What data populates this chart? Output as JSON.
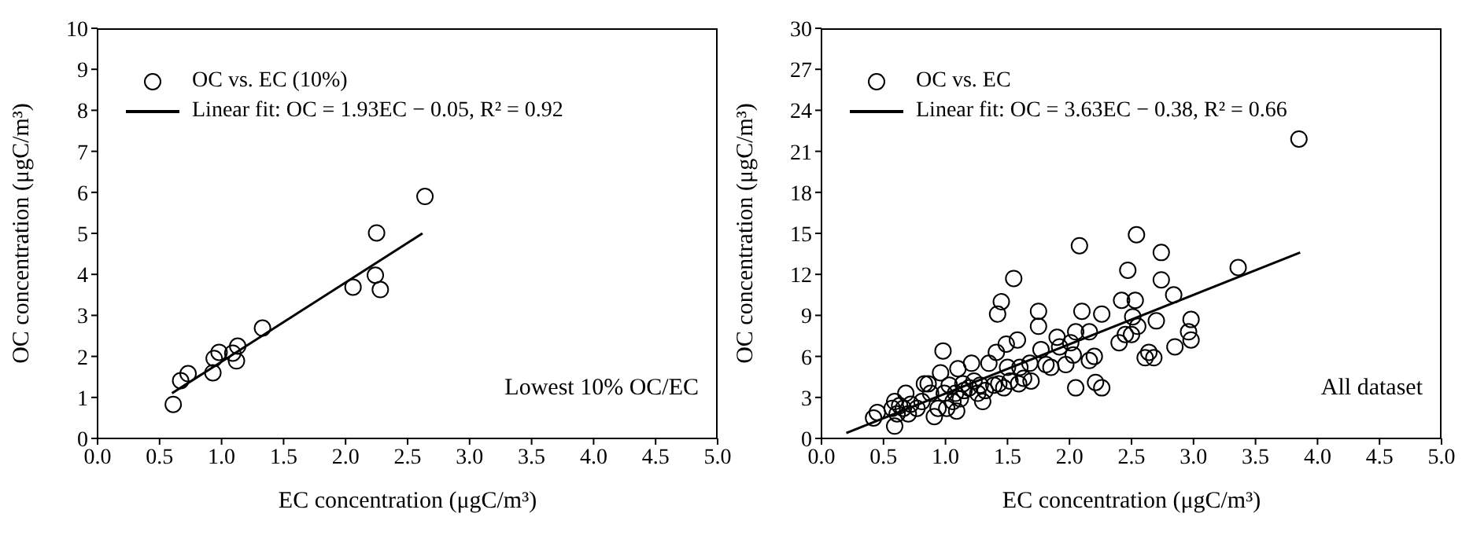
{
  "chart_data": [
    {
      "type": "scatter",
      "xlabel": "EC concentration (μgC/m³)",
      "ylabel": "OC concentration (μgC/m³)",
      "annotations": [
        "Lowest 10% OC/EC"
      ],
      "xlim": [
        0,
        5
      ],
      "xticks": [
        {
          "value": 0,
          "label": "0.0"
        },
        0.5,
        {
          "value": 1,
          "label": "1.0"
        },
        1.5,
        {
          "value": 2,
          "label": "2.0"
        },
        2.5,
        {
          "value": 3,
          "label": "3.0"
        },
        3.5,
        {
          "value": 4,
          "label": "4.0"
        },
        4.5,
        {
          "value": 5,
          "label": "5.0"
        }
      ],
      "ylim": [
        0,
        10
      ],
      "yticks": [
        0,
        1,
        2,
        3,
        4,
        5,
        6,
        7,
        8,
        9,
        10
      ],
      "grid": false,
      "legend": "top left",
      "series": [
        {
          "name": "OC vs. EC (10%)",
          "marker": "circle",
          "color": "#000000",
          "x": [
            0.61,
            0.67,
            0.73,
            0.93,
            0.94,
            0.98,
            1.09,
            1.12,
            1.13,
            1.33,
            2.06,
            2.24,
            2.28,
            2.25,
            2.64
          ],
          "values": [
            0.83,
            1.41,
            1.58,
            1.6,
            1.95,
            2.1,
            2.08,
            1.89,
            2.25,
            2.69,
            3.69,
            3.98,
            3.63,
            5.01,
            5.9
          ]
        },
        {
          "name": "Linear fit: OC = 1.93EC − 0.05, R² = 0.92",
          "type": "line",
          "color": "#000000",
          "line_style": "solid",
          "x": [
            0.6,
            2.62
          ],
          "values": [
            1.1,
            5.0
          ]
        }
      ]
    },
    {
      "type": "scatter",
      "xlabel": "EC concentration (μgC/m³)",
      "ylabel": "OC concentration (μgC/m³)",
      "annotations": [
        "All dataset"
      ],
      "xlim": [
        0,
        5
      ],
      "xticks": [
        {
          "value": 0,
          "label": "0.0"
        },
        0.5,
        {
          "value": 1,
          "label": "1.0"
        },
        1.5,
        {
          "value": 2,
          "label": "2.0"
        },
        2.5,
        {
          "value": 3,
          "label": "3.0"
        },
        3.5,
        {
          "value": 4,
          "label": "4.0"
        },
        4.5,
        {
          "value": 5,
          "label": "5.0"
        }
      ],
      "ylim": [
        0,
        30
      ],
      "yticks": [
        0,
        3,
        6,
        9,
        12,
        15,
        18,
        21,
        24,
        27,
        30
      ],
      "grid": false,
      "legend": "top left",
      "series": [
        {
          "name": "OC vs. EC",
          "marker": "circle",
          "color": "#000000",
          "x": [
            0.42,
            0.45,
            0.57,
            0.59,
            0.59,
            0.61,
            0.63,
            0.66,
            0.68,
            0.7,
            0.72,
            0.77,
            0.81,
            0.83,
            0.86,
            0.88,
            0.91,
            0.94,
            0.96,
            0.98,
            0.99,
            1.01,
            1.03,
            1.06,
            1.08,
            1.09,
            1.1,
            1.12,
            1.14,
            1.15,
            1.19,
            1.21,
            1.23,
            1.26,
            1.28,
            1.3,
            1.32,
            1.35,
            1.39,
            1.41,
            1.43,
            1.42,
            1.45,
            1.47,
            1.49,
            1.5,
            1.52,
            1.55,
            1.58,
            1.59,
            1.6,
            1.63,
            1.68,
            1.69,
            1.75,
            1.75,
            1.77,
            1.81,
            1.85,
            1.9,
            1.92,
            1.97,
            2.01,
            2.03,
            2.05,
            2.05,
            2.08,
            2.1,
            2.16,
            2.16,
            2.2,
            2.21,
            2.26,
            2.26,
            2.4,
            2.42,
            2.45,
            2.47,
            2.5,
            2.51,
            2.53,
            2.54,
            2.55,
            2.61,
            2.64,
            2.68,
            2.7,
            2.74,
            2.74,
            2.84,
            2.85,
            2.96,
            2.98,
            2.98,
            3.36,
            3.85
          ],
          "values": [
            1.5,
            1.9,
            2.2,
            0.9,
            2.7,
            1.8,
            2.4,
            2.2,
            3.3,
            1.8,
            2.5,
            2.2,
            2.7,
            4.0,
            4.0,
            3.3,
            1.6,
            2.2,
            4.8,
            6.4,
            3.3,
            2.2,
            3.9,
            2.7,
            3.3,
            2.0,
            5.1,
            2.9,
            4.0,
            3.5,
            3.7,
            5.5,
            4.2,
            3.3,
            3.9,
            2.7,
            3.5,
            5.5,
            3.9,
            6.3,
            4.0,
            9.1,
            10.0,
            3.7,
            6.9,
            5.2,
            4.2,
            11.7,
            7.2,
            4.0,
            5.2,
            4.4,
            5.5,
            4.2,
            9.3,
            8.2,
            6.5,
            5.4,
            5.2,
            7.4,
            6.7,
            5.4,
            7.0,
            6.1,
            7.8,
            3.7,
            14.1,
            9.3,
            7.8,
            5.7,
            6.0,
            4.1,
            3.7,
            9.1,
            7.0,
            10.1,
            7.6,
            12.3,
            7.6,
            8.9,
            10.1,
            14.9,
            8.2,
            5.9,
            6.3,
            5.9,
            8.6,
            11.6,
            13.6,
            10.5,
            6.7,
            7.8,
            7.2,
            8.7,
            12.5,
            21.9
          ]
        },
        {
          "name": "Linear fit: OC = 3.63EC − 0.38, R² = 0.66",
          "type": "line",
          "color": "#000000",
          "line_style": "solid",
          "x": [
            0.2,
            3.86
          ],
          "values": [
            0.4,
            13.6
          ]
        }
      ]
    }
  ]
}
